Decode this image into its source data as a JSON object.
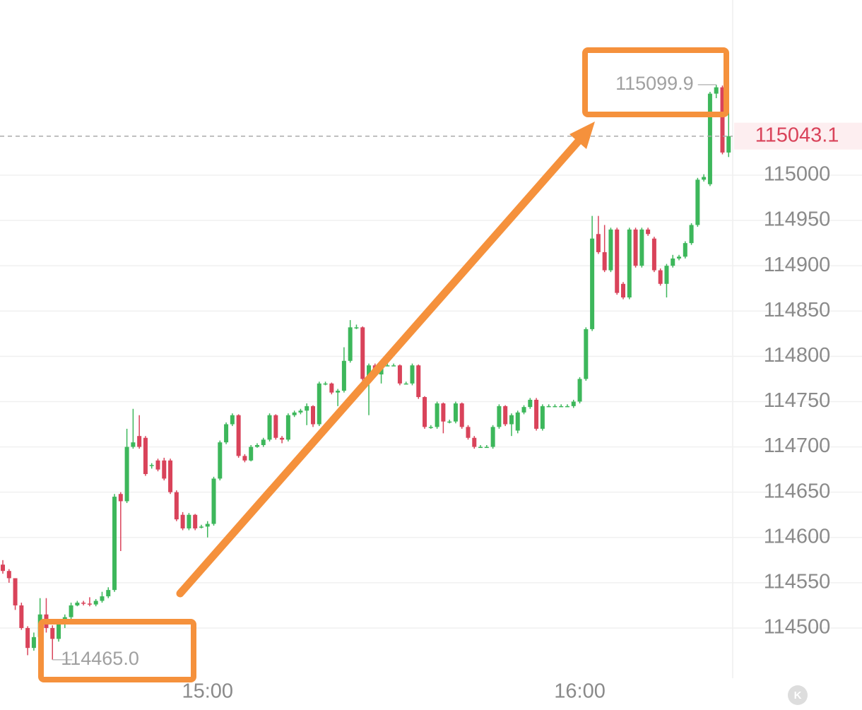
{
  "chart_data": {
    "type": "candlestick",
    "categories": [
      null,
      null,
      null,
      null,
      null,
      null,
      null,
      null,
      null,
      null,
      null,
      null,
      null,
      null,
      null,
      null,
      null,
      null,
      null,
      null,
      null,
      null,
      null,
      null,
      null,
      null,
      null,
      null,
      null,
      null,
      null,
      null,
      null,
      "15:00",
      null,
      null,
      null,
      null,
      null,
      null,
      null,
      null,
      null,
      null,
      null,
      null,
      null,
      null,
      null,
      null,
      null,
      null,
      null,
      null,
      null,
      null,
      null,
      null,
      null,
      null,
      null,
      null,
      null,
      null,
      null,
      null,
      null,
      null,
      null,
      null,
      null,
      null,
      null,
      null,
      null,
      null,
      null,
      null,
      null,
      null,
      null,
      null,
      null,
      null,
      null,
      null,
      null,
      null,
      null,
      null,
      null,
      null,
      null,
      "16:00",
      null,
      null,
      null,
      null,
      null,
      null,
      null,
      null,
      null,
      null,
      null,
      null,
      null,
      null,
      null,
      null,
      null,
      null,
      null,
      null,
      null,
      null,
      null,
      null
    ],
    "ohlc": [
      [
        114570,
        114575,
        114560,
        114563
      ],
      [
        114563,
        114565,
        114550,
        114555
      ],
      [
        114555,
        114555,
        114520,
        114525
      ],
      [
        114525,
        114528,
        114498,
        114500
      ],
      [
        114500,
        114502,
        114470,
        114478
      ],
      [
        114478,
        114495,
        114475,
        114490
      ],
      [
        114490,
        114533,
        114488,
        114515
      ],
      [
        114515,
        114533,
        114495,
        114500
      ],
      [
        114500,
        114503,
        114465,
        114488
      ],
      [
        114488,
        114508,
        114485,
        114505
      ],
      [
        114505,
        114515,
        114500,
        114512
      ],
      [
        114512,
        114528,
        114510,
        114525
      ],
      [
        114525,
        114530,
        114524,
        114528
      ],
      [
        114528,
        114530,
        114525,
        114527
      ],
      [
        114527,
        114534,
        114524,
        114526
      ],
      [
        114526,
        114532,
        114524,
        114530
      ],
      [
        114530,
        114540,
        114528,
        114535
      ],
      [
        114535,
        114545,
        114533,
        114542
      ],
      [
        114542,
        114648,
        114540,
        114645
      ],
      [
        114648,
        114650,
        114585,
        114640
      ],
      [
        114640,
        114720,
        114638,
        114700
      ],
      [
        114700,
        114742,
        114698,
        114705
      ],
      [
        114712,
        114735,
        114698,
        114700
      ],
      [
        114710,
        114712,
        114668,
        114670
      ],
      [
        114680,
        114682,
        114676,
        114680
      ],
      [
        114685,
        114687,
        114673,
        114675
      ],
      [
        114685,
        114688,
        114663,
        114665
      ],
      [
        114685,
        114687,
        114648,
        114650
      ],
      [
        114650,
        114652,
        114618,
        114620
      ],
      [
        114625,
        114628,
        114608,
        114610
      ],
      [
        114610,
        114627,
        114608,
        114625
      ],
      [
        114625,
        114626,
        114608,
        114610
      ],
      [
        114612,
        114614,
        114610,
        114612
      ],
      [
        114612,
        114618,
        114600,
        114615
      ],
      [
        114615,
        114667,
        114613,
        114665
      ],
      [
        114665,
        114707,
        114663,
        114705
      ],
      [
        114705,
        114727,
        114703,
        114725
      ],
      [
        114725,
        114737,
        114723,
        114735
      ],
      [
        114735,
        114736,
        114688,
        114690
      ],
      [
        114690,
        114692,
        114683,
        114685
      ],
      [
        114685,
        114702,
        114684,
        114700
      ],
      [
        114700,
        114704,
        114699,
        114702
      ],
      [
        114702,
        114710,
        114700,
        114708
      ],
      [
        114708,
        114737,
        114706,
        114735
      ],
      [
        114735,
        114736,
        114708,
        114710
      ],
      [
        114710,
        114712,
        114704,
        114708
      ],
      [
        114708,
        114737,
        114706,
        114735
      ],
      [
        114735,
        114740,
        114733,
        114738
      ],
      [
        114738,
        114742,
        114736,
        114740
      ],
      [
        114740,
        114748,
        114724,
        114745
      ],
      [
        114745,
        114746,
        114722,
        114725
      ],
      [
        114725,
        114772,
        114723,
        114770
      ],
      [
        114770,
        114772,
        114768,
        114770
      ],
      [
        114770,
        114771,
        114758,
        114760
      ],
      [
        114760,
        114764,
        114745,
        114762
      ],
      [
        114762,
        114810,
        114760,
        114795
      ],
      [
        114795,
        114840,
        114793,
        114832
      ],
      [
        114832,
        114835,
        114830,
        114832
      ],
      [
        114832,
        114833,
        114773,
        114775
      ],
      [
        114775,
        114792,
        114735,
        114790
      ],
      [
        114790,
        114792,
        114778,
        114780
      ],
      [
        114780,
        114795,
        114770,
        114790
      ],
      [
        114790,
        114792,
        114789,
        114790
      ],
      [
        114790,
        114792,
        114789,
        114790
      ],
      [
        114790,
        114791,
        114768,
        114770
      ],
      [
        114770,
        114772,
        114769,
        114770
      ],
      [
        114770,
        114792,
        114768,
        114790
      ],
      [
        114790,
        114791,
        114753,
        114755
      ],
      [
        114755,
        114756,
        114720,
        114722
      ],
      [
        114722,
        114724,
        114720,
        114722
      ],
      [
        114722,
        114750,
        114720,
        114748
      ],
      [
        114748,
        114749,
        114715,
        114728
      ],
      [
        114728,
        114730,
        114726,
        114728
      ],
      [
        114728,
        114750,
        114726,
        114748
      ],
      [
        114748,
        114749,
        114720,
        114722
      ],
      [
        114722,
        114724,
        114708,
        114710
      ],
      [
        114710,
        114712,
        114698,
        114700
      ],
      [
        114700,
        114702,
        114699,
        114700
      ],
      [
        114700,
        114702,
        114699,
        114700
      ],
      [
        114700,
        114724,
        114698,
        114722
      ],
      [
        114722,
        114747,
        114720,
        114745
      ],
      [
        114745,
        114746,
        114723,
        114725
      ],
      [
        114725,
        114737,
        114712,
        114735
      ],
      [
        114718,
        114740,
        114715,
        114738
      ],
      [
        114738,
        114746,
        114736,
        114744
      ],
      [
        114744,
        114754,
        114742,
        114752
      ],
      [
        114752,
        114754,
        114718,
        114720
      ],
      [
        114720,
        114747,
        114718,
        114745
      ],
      [
        114745,
        114747,
        114744,
        114745
      ],
      [
        114745,
        114747,
        114744,
        114745
      ],
      [
        114745,
        114747,
        114744,
        114745
      ],
      [
        114745,
        114747,
        114744,
        114745
      ],
      [
        114745,
        114752,
        114743,
        114750
      ],
      [
        114750,
        114777,
        114748,
        114775
      ],
      [
        114775,
        114832,
        114773,
        114830
      ],
      [
        114830,
        114955,
        114828,
        114930
      ],
      [
        114935,
        114955,
        114913,
        114915
      ],
      [
        114915,
        114945,
        114893,
        114895
      ],
      [
        114895,
        114942,
        114893,
        114940
      ],
      [
        114940,
        114942,
        114868,
        114870
      ],
      [
        114880,
        114882,
        114863,
        114865
      ],
      [
        114865,
        114942,
        114863,
        114940
      ],
      [
        114940,
        114942,
        114898,
        114900
      ],
      [
        114900,
        114942,
        114898,
        114940
      ],
      [
        114940,
        114942,
        114933,
        114935
      ],
      [
        114930,
        114932,
        114893,
        114895
      ],
      [
        114895,
        114897,
        114878,
        114880
      ],
      [
        114880,
        114902,
        114865,
        114900
      ],
      [
        114900,
        114912,
        114898,
        114908
      ],
      [
        114908,
        114912,
        114906,
        114910
      ],
      [
        114910,
        114927,
        114908,
        114925
      ],
      [
        114925,
        114947,
        114923,
        114945
      ],
      [
        114945,
        114997,
        114943,
        114995
      ],
      [
        114995,
        115001,
        114993,
        114998
      ],
      [
        114990,
        115092,
        114988,
        115090
      ],
      [
        115090,
        115099.9,
        115085,
        115097
      ],
      [
        115097,
        115099,
        115023,
        115025
      ],
      [
        115025,
        115075,
        115020,
        115043.1
      ]
    ],
    "up_color": "#3db75b",
    "down_color": "#d9435a",
    "ylim": [
      114444.6,
      115193.4
    ],
    "yticks": [
      114500,
      114550,
      114600,
      114650,
      114700,
      114750,
      114800,
      114850,
      114900,
      114950,
      115000
    ],
    "grid": true,
    "max_label": "115099.9",
    "min_label": "114465.0",
    "last_price_label": "115043.1"
  }
}
